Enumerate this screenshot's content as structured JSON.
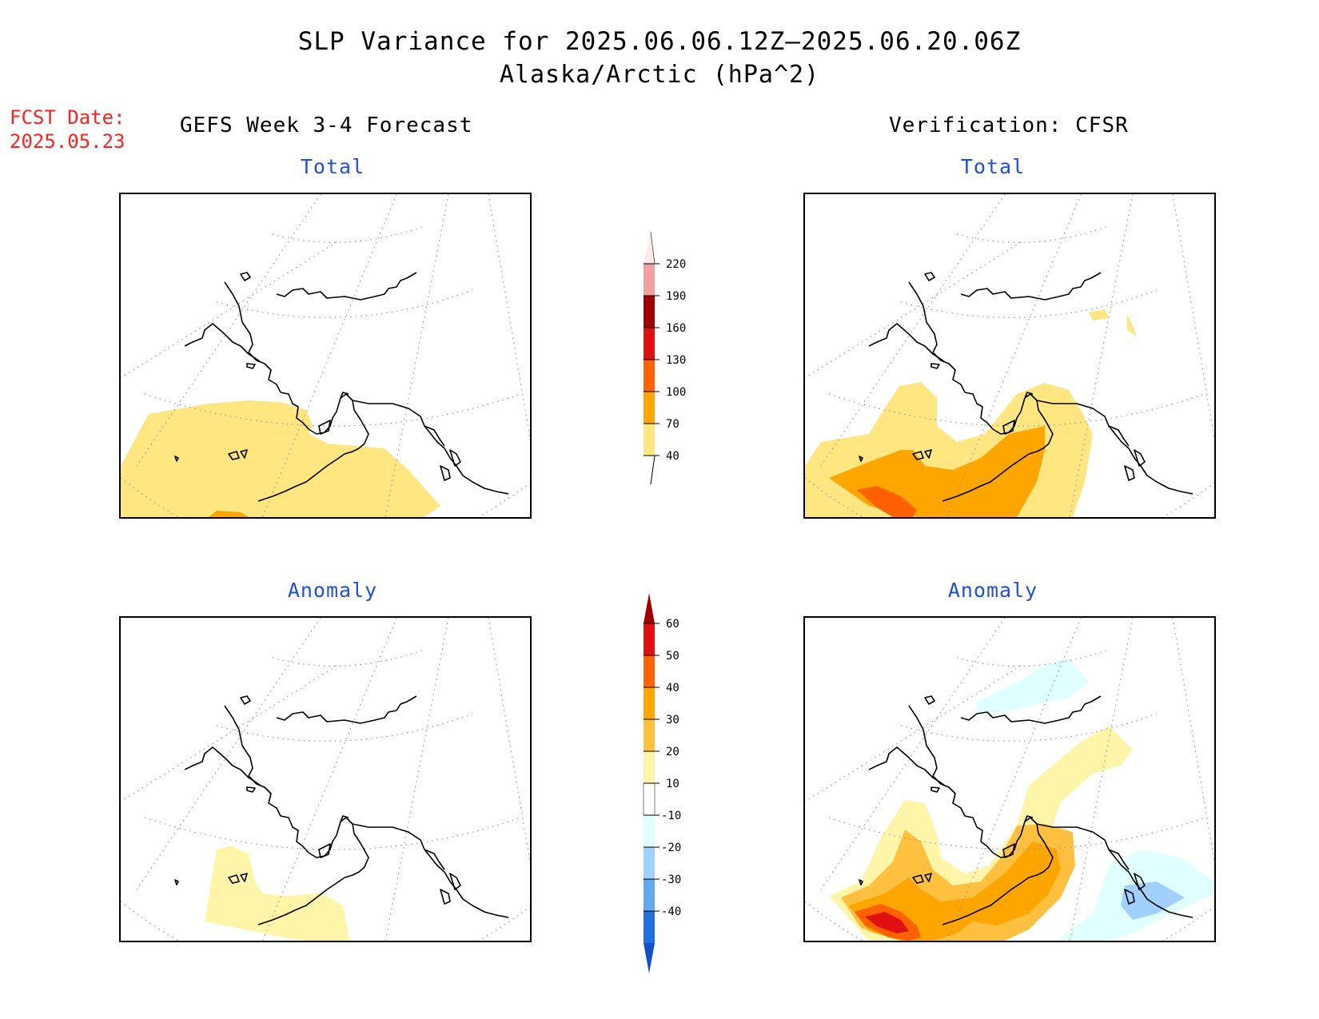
{
  "header": {
    "title": "SLP Variance for 2025.06.06.12Z—2025.06.20.06Z",
    "subtitle": "Alaska/Arctic (hPa^2)",
    "fcst_date_label": "FCST Date:",
    "fcst_date_value": "2025.05.23",
    "left_column_title": "GEFS Week 3-4 Forecast",
    "right_column_title": "Verification: CFSR"
  },
  "panels": {
    "forecast_total": {
      "title": "Total"
    },
    "verification_total": {
      "title": "Total"
    },
    "forecast_anomaly": {
      "title": "Anomaly"
    },
    "verification_anomaly": {
      "title": "Anomaly"
    }
  },
  "colorbar_total": {
    "levels": [
      "40",
      "70",
      "100",
      "130",
      "160",
      "190",
      "220"
    ],
    "colors": [
      "#ffe680",
      "#ffa500",
      "#ff6000",
      "#e01010",
      "#a00000",
      "#f0a0a0",
      "#ffe8e8"
    ]
  },
  "colorbar_anomaly": {
    "levels": [
      "60",
      "50",
      "40",
      "30",
      "20",
      "10",
      "-10",
      "-20",
      "-30",
      "-40"
    ],
    "colors_top_down": [
      "#a00000",
      "#e01010",
      "#ff6000",
      "#ffa500",
      "#ffc040",
      "#fff5a8",
      "#ffffff",
      "#e0ffff",
      "#a0d0ff",
      "#60a8f0",
      "#2070e0",
      "#1050c8"
    ]
  },
  "map_colors": {
    "coast": "#000000",
    "grid": "#888888",
    "yellow": "#ffe680",
    "light_yellow": "#fff5a8",
    "gold": "#ffc040",
    "orange": "#ffa500",
    "dark_orange": "#ff6000",
    "red": "#e01010",
    "light_cyan": "#e0ffff",
    "light_blue": "#a0d0ff"
  }
}
